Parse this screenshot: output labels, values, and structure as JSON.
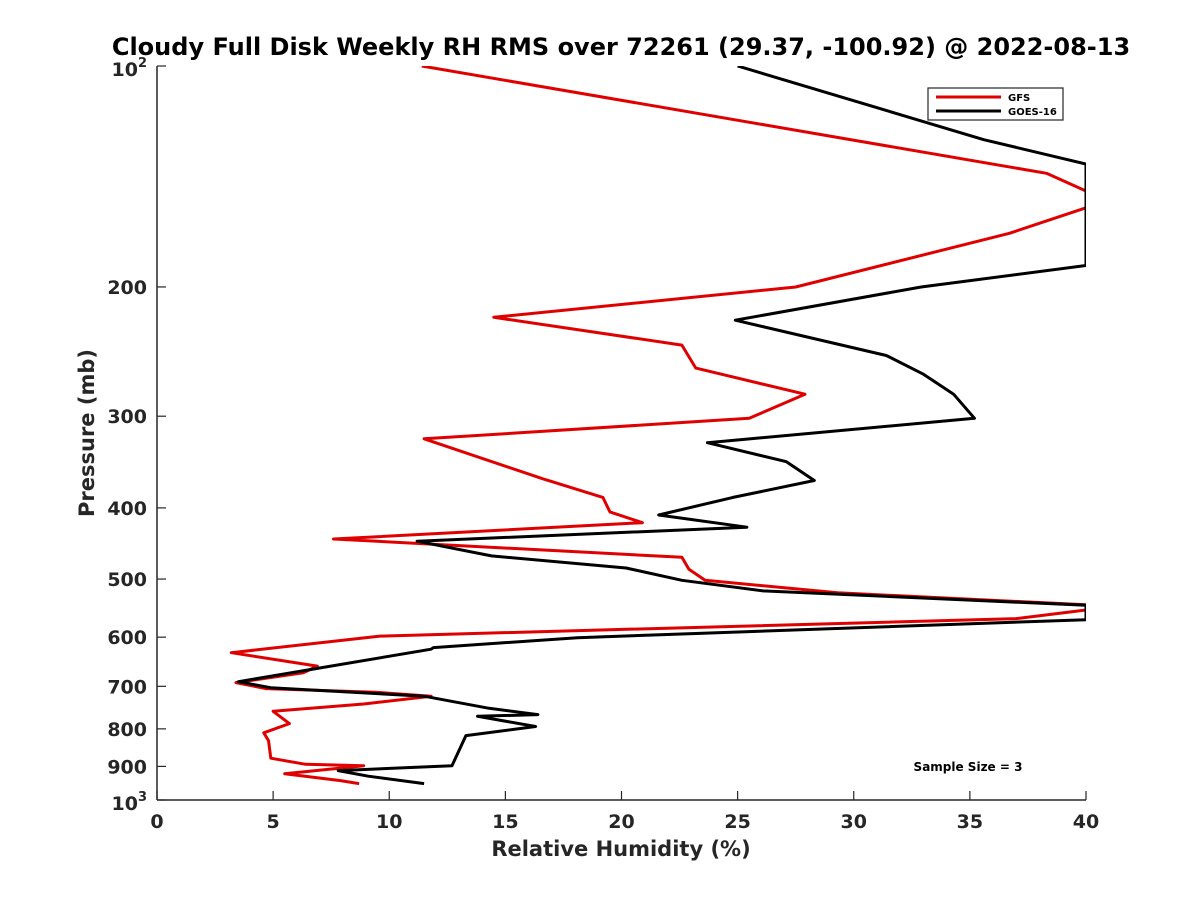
{
  "chart_data": {
    "type": "line",
    "title": "Cloudy Full Disk Weekly RH RMS over 72261 (29.37, -100.92) @ 2022-08-13",
    "xlabel": "Relative Humidity (%)",
    "ylabel": "Pressure (mb)",
    "xlim": [
      0,
      40
    ],
    "ylim": [
      100,
      1000
    ],
    "y_scale": "log",
    "y_reversed": true,
    "grid": false,
    "legend_position": "top-right",
    "x_ticks": [
      "0",
      "5",
      "10",
      "15",
      "20",
      "25",
      "30",
      "35",
      "40"
    ],
    "y_ticks": [
      {
        "value": 100,
        "base": "10",
        "exp": "2"
      },
      {
        "value": 200,
        "label": "200"
      },
      {
        "value": 300,
        "label": "300"
      },
      {
        "value": 400,
        "label": "400"
      },
      {
        "value": 500,
        "label": "500"
      },
      {
        "value": 600,
        "label": "600"
      },
      {
        "value": 700,
        "label": "700"
      },
      {
        "value": 800,
        "label": "800"
      },
      {
        "value": 900,
        "label": "900"
      },
      {
        "value": 1000,
        "base": "10",
        "exp": "3"
      }
    ],
    "series": [
      {
        "name": "GFS",
        "color": "#e00000",
        "x": [
          11.4,
          38.3,
          40.0,
          40.0,
          36.7,
          27.5,
          14.5,
          22.6,
          23.2,
          27.9,
          25.5,
          11.5,
          16.6,
          19.2,
          19.5,
          20.9,
          7.6,
          22.6,
          22.9,
          23.6,
          29.3,
          40.0,
          40.0,
          37.0,
          9.6,
          3.2,
          6.9,
          6.3,
          3.4,
          4.7,
          9.4,
          11.8,
          8.9,
          5.0,
          5.7,
          4.6,
          4.8,
          4.9,
          6.4,
          8.9,
          5.5,
          7.9,
          8.7
        ],
        "y": [
          100,
          140,
          148,
          156,
          169,
          200,
          220,
          240,
          258,
          280,
          302,
          322,
          365,
          387,
          405,
          419,
          441,
          467,
          485,
          502,
          522,
          542,
          551,
          566,
          598,
          630,
          657,
          671,
          692,
          705,
          713,
          722,
          740,
          757,
          787,
          810,
          830,
          877,
          894,
          898,
          921,
          941,
          950
        ]
      },
      {
        "name": "GOES-16",
        "color": "#000000",
        "x": [
          25.0,
          35.6,
          40.0,
          40.0,
          32.9,
          24.9,
          31.4,
          33.0,
          34.3,
          35.2,
          23.7,
          27.1,
          28.3,
          24.8,
          21.6,
          25.4,
          11.2,
          14.4,
          20.2,
          22.6,
          26.1,
          40.0,
          40.0,
          18.1,
          11.9,
          11.8,
          3.5,
          4.9,
          11.5,
          14.3,
          16.4,
          13.8,
          16.3,
          13.3,
          12.7,
          7.8,
          9.1,
          11.5
        ],
        "y": [
          100,
          126,
          136,
          187,
          200,
          222,
          248,
          263,
          280,
          302,
          326,
          346,
          367,
          387,
          409,
          425,
          444,
          465,
          483,
          502,
          519,
          543,
          568,
          601,
          620,
          623,
          690,
          703,
          722,
          750,
          765,
          769,
          794,
          817,
          898,
          912,
          928,
          950
        ]
      }
    ],
    "annotations": [
      "Sample Size = 3"
    ]
  }
}
